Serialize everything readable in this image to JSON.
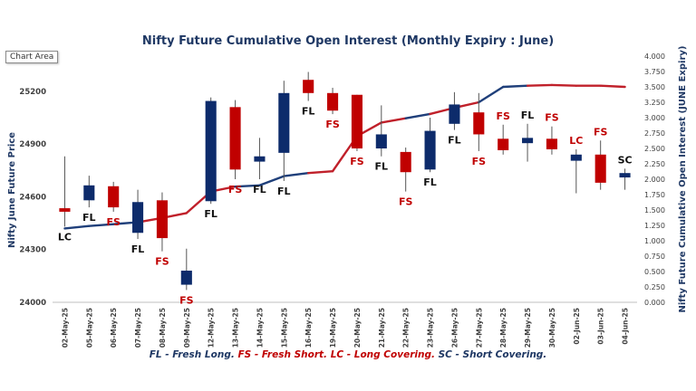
{
  "chart_area_label": "Chart Area",
  "legend_note": {
    "fl": "FL - Fresh Long.",
    "fs": "FS - Fresh Short.",
    "lc": "LC - Long Covering.",
    "sc": "SC - Short Covering."
  },
  "colors": {
    "bull": "#0d2b6b",
    "bear": "#c00000",
    "oi_blue": "#1f3f7a",
    "oi_red": "#c0202a",
    "wick": "#555555",
    "axis_text": "#404040",
    "title": "#1f3864"
  },
  "chart_data": {
    "type": "candlestick",
    "title": "Nifty Future Cumulative Open Interest (Monthly Expiry : June)",
    "ylabel": "Nifty June Future Price",
    "y2label": "Nifty Future Cumulative Open Interest (JUNE Expiry)",
    "ylim": [
      24000,
      25400
    ],
    "y_ticks": [
      24000,
      24300,
      24600,
      24900,
      25200
    ],
    "y2lim": [
      0,
      4000
    ],
    "y2_ticks": [
      "0.000",
      "0.250",
      "0.500",
      "0.750",
      "1.000",
      "1.250",
      "1.500",
      "1.750",
      "2.000",
      "2.250",
      "2.500",
      "2.750",
      "3.000",
      "3.250",
      "3.500",
      "3.750",
      "4.000"
    ],
    "categories": [
      "02-May-25",
      "05-May-25",
      "06-May-25",
      "07-May-25",
      "08-May-25",
      "09-May-25",
      "12-May-25",
      "13-May-25",
      "14-May-25",
      "15-May-25",
      "16-May-25",
      "19-May-25",
      "20-May-25",
      "21-May-25",
      "22-May-25",
      "23-May-25",
      "26-May-25",
      "27-May-25",
      "28-May-25",
      "29-May-25",
      "30-May-25",
      "02-Jun-25",
      "03-Jun-25",
      "04-Jun-25"
    ],
    "ohlc": [
      {
        "open": 24535,
        "high": 24830,
        "low": 24430,
        "close": 24515
      },
      {
        "open": 24580,
        "high": 24720,
        "low": 24540,
        "close": 24665
      },
      {
        "open": 24660,
        "high": 24685,
        "low": 24515,
        "close": 24540
      },
      {
        "open": 24395,
        "high": 24640,
        "low": 24360,
        "close": 24570
      },
      {
        "open": 24580,
        "high": 24625,
        "low": 24290,
        "close": 24365
      },
      {
        "open": 24100,
        "high": 24305,
        "low": 24070,
        "close": 24180
      },
      {
        "open": 24575,
        "high": 25165,
        "low": 24560,
        "close": 25145
      },
      {
        "open": 25110,
        "high": 25150,
        "low": 24700,
        "close": 24755
      },
      {
        "open": 24800,
        "high": 24935,
        "low": 24700,
        "close": 24830
      },
      {
        "open": 24850,
        "high": 25260,
        "low": 24690,
        "close": 25190
      },
      {
        "open": 25265,
        "high": 25310,
        "low": 25145,
        "close": 25190
      },
      {
        "open": 25190,
        "high": 25220,
        "low": 25070,
        "close": 25090
      },
      {
        "open": 25180,
        "high": 25180,
        "low": 24860,
        "close": 24875
      },
      {
        "open": 24875,
        "high": 25120,
        "low": 24830,
        "close": 24955
      },
      {
        "open": 24855,
        "high": 24880,
        "low": 24630,
        "close": 24740
      },
      {
        "open": 24755,
        "high": 25050,
        "low": 24740,
        "close": 24975
      },
      {
        "open": 25015,
        "high": 25195,
        "low": 24980,
        "close": 25125
      },
      {
        "open": 25080,
        "high": 25190,
        "low": 24860,
        "close": 24955
      },
      {
        "open": 24930,
        "high": 25010,
        "low": 24840,
        "close": 24865
      },
      {
        "open": 24905,
        "high": 25015,
        "low": 24800,
        "close": 24935
      },
      {
        "open": 24930,
        "high": 25000,
        "low": 24840,
        "close": 24870
      },
      {
        "open": 24805,
        "high": 24870,
        "low": 24620,
        "close": 24840
      },
      {
        "open": 24840,
        "high": 24920,
        "low": 24640,
        "close": 24680
      },
      {
        "open": 24710,
        "high": 24760,
        "low": 24640,
        "close": 24735
      }
    ],
    "open_interest": [
      1200,
      1240,
      1270,
      1300,
      1370,
      1450,
      1800,
      1880,
      1900,
      2050,
      2100,
      2130,
      2700,
      2920,
      2990,
      3060,
      3160,
      3250,
      3500,
      3520,
      3530,
      3520,
      3520,
      3500
    ],
    "oi_trend_colors": [
      "blue",
      "blue",
      "blue",
      "blue",
      "red",
      "red",
      "red",
      "red",
      "blue",
      "blue",
      "blue",
      "red",
      "red",
      "red",
      "red",
      "blue",
      "red",
      "red",
      "blue",
      "blue",
      "red",
      "red",
      "red",
      "red"
    ],
    "labels": [
      "LC",
      "FL",
      "FS",
      "FL",
      "FS",
      "FS",
      "FL",
      "FS",
      "FL",
      "FL",
      "FL",
      "FS",
      "FS",
      "FL",
      "FS",
      "FL",
      "FL",
      "FS",
      "FS",
      "FL",
      "FS",
      "LC",
      "FS",
      "SC"
    ],
    "label_anchor": [
      "low",
      "low",
      "low",
      "low",
      "low",
      "low",
      "low",
      "low",
      "low",
      "low",
      "low",
      "low",
      "low",
      "low",
      "low",
      "low",
      "low",
      "low",
      "high",
      "high",
      "high",
      "high",
      "high",
      "high"
    ],
    "grid": false
  }
}
